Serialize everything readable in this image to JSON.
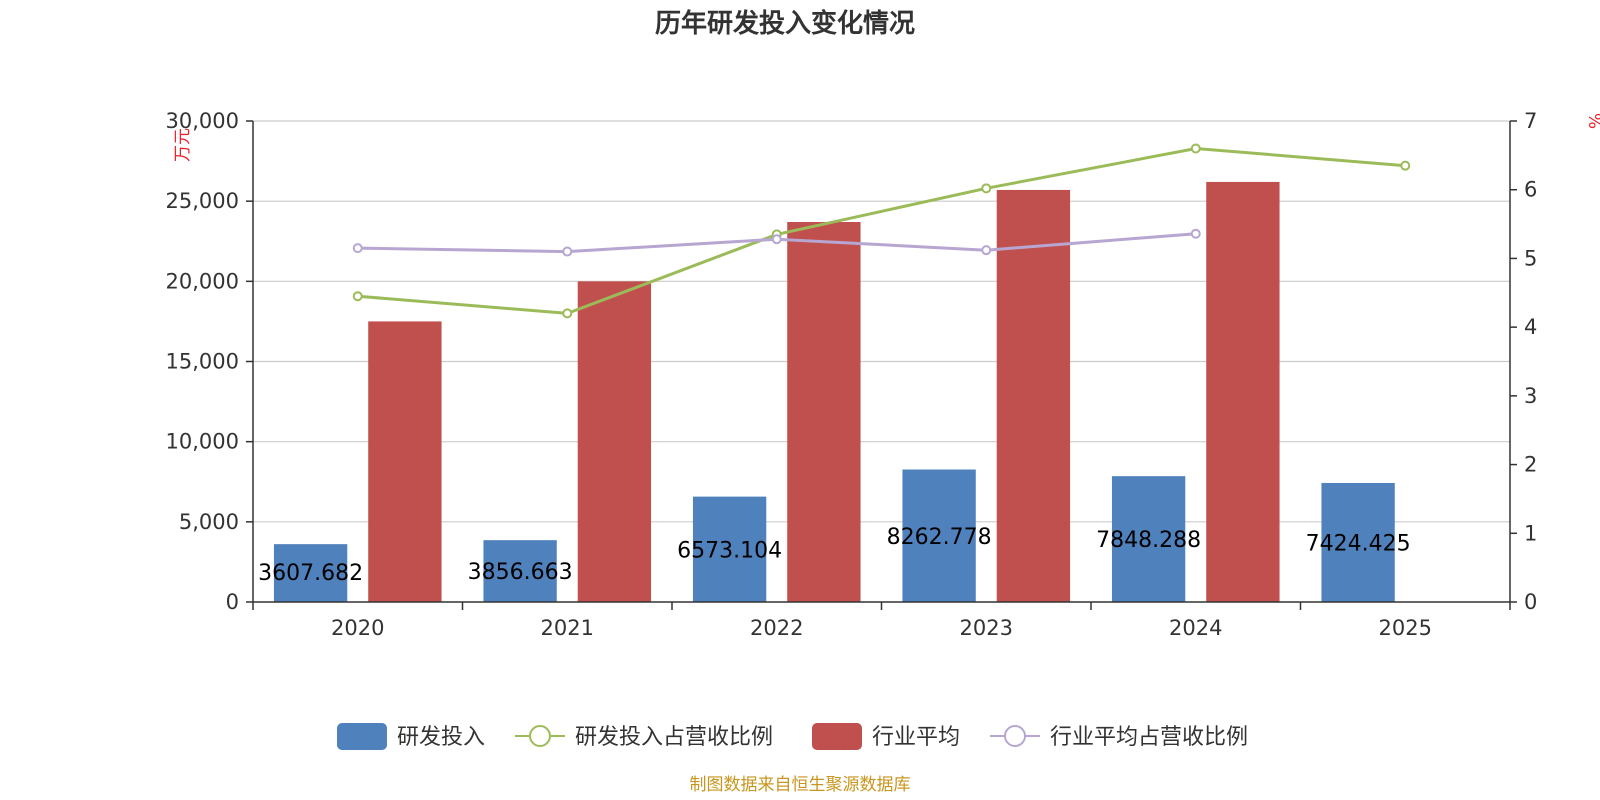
{
  "chart_data": {
    "type": "bar",
    "title": "历年研发投入变化情况",
    "categories": [
      "2020",
      "2021",
      "2022",
      "2023",
      "2024",
      "2025"
    ],
    "y_left": {
      "unit": "万元",
      "range": [
        0,
        30000
      ],
      "ticks": [
        0,
        5000,
        10000,
        15000,
        20000,
        25000,
        30000
      ],
      "tick_labels": [
        "0",
        "5,000",
        "10,000",
        "15,000",
        "20,000",
        "25,000",
        "30,000"
      ]
    },
    "y_right": {
      "unit": "%",
      "range": [
        0,
        7
      ],
      "ticks": [
        0,
        1,
        2,
        3,
        4,
        5,
        6,
        7
      ]
    },
    "grid": true,
    "legend_position": "bottom",
    "series": [
      {
        "name": "研发投入",
        "kind": "bar",
        "axis": "left",
        "color": "#4f81bd",
        "values": [
          3607.682,
          3856.663,
          6573.104,
          8262.778,
          7848.288,
          7424.425
        ],
        "labels": [
          "3607.682",
          "3856.663",
          "6573.104",
          "8262.778",
          "7848.288",
          "7424.425"
        ]
      },
      {
        "name": "研发投入占营收比例",
        "kind": "line",
        "axis": "right",
        "color": "#9bbb59",
        "values": [
          4.45,
          4.2,
          5.35,
          6.02,
          6.6,
          6.35
        ]
      },
      {
        "name": "行业平均",
        "kind": "bar",
        "axis": "left",
        "color": "#c0504d",
        "values": [
          17500,
          20000,
          23700,
          25700,
          26200,
          null
        ]
      },
      {
        "name": "行业平均占营收比例",
        "kind": "line",
        "axis": "right",
        "color": "#b7a6d1",
        "values": [
          5.15,
          5.1,
          5.28,
          5.12,
          5.36,
          null
        ]
      }
    ],
    "source": "制图数据来自恒生聚源数据库"
  }
}
